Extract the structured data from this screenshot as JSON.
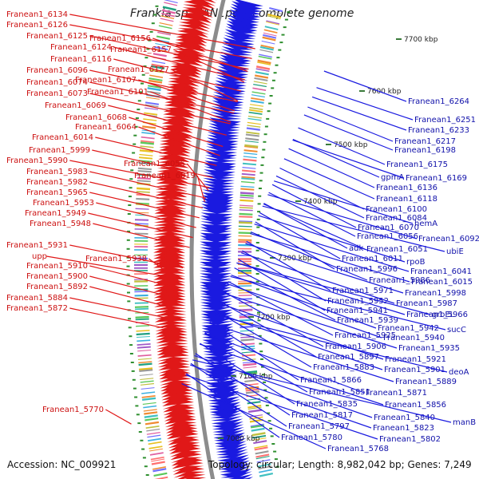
{
  "title": "Frankia sp. EAN1pec, complete genome",
  "accession": "Accession: NC_009921",
  "summary": "Topology: circular; Length: 8,982,042 bp; Genes: 7,249",
  "colors": {
    "forward": "#e01818",
    "reverse": "#1a1ae0",
    "backbone": "#8c8c8c",
    "tick": "#2f8f2f",
    "label_red": "#cc1111",
    "label_blue": "#1111aa"
  },
  "ticks": [
    {
      "label": "7000 kbp"
    },
    {
      "label": "7100 kbp"
    },
    {
      "label": "7200 kbp"
    },
    {
      "label": "7300 kbp"
    },
    {
      "label": "7400 kbp"
    },
    {
      "label": "7500 kbp"
    },
    {
      "label": "7600 kbp"
    },
    {
      "label": "7700 kbp"
    }
  ],
  "left_labels": [
    "Franean1_6134",
    "Franean1_6126",
    "Franean1_6125",
    "Franean1_6156",
    "Franean1_6124",
    "Franean1_6157",
    "Franean1_6116",
    "Franean1_6096",
    "Franean1_6127",
    "Franean1_6107",
    "Franean1_6074",
    "Franean1_6073",
    "Franean1_6101",
    "Franean1_6069",
    "Franean1_6068",
    "Franean1_6064",
    "Franean1_6014",
    "Franean1_5999",
    "Franean1_5990",
    "Franean1_6055",
    "Franean1_5983",
    "Franean1_6019",
    "Franean1_5982",
    "Franean1_5965",
    "Franean1_5953",
    "Franean1_5949",
    "Franean1_5948",
    "Franean1_5931",
    "upp",
    "Franean1_5938",
    "Franean1_5910",
    "Franean1_5900",
    "Franean1_5892",
    "Franean1_5884",
    "Franean1_5872",
    "Franean1_5770"
  ],
  "right_labels": [
    "Franean1_6264",
    "Franean1_6251",
    "Franean1_6233",
    "Franean1_6217",
    "Franean1_6198",
    "Franean1_6175",
    "gpmA",
    "Franean1_6169",
    "Franean1_6136",
    "Franean1_6118",
    "Franean1_6100",
    "Franean1_6084",
    "hemA",
    "Franean1_6070",
    "Franean1_6056",
    "Franean1_6092",
    "adk",
    "Franean1_6051",
    "ubiE",
    "Franean1_6011",
    "rpoB",
    "Franean1_6041",
    "Franean1_5996",
    "Franean1_5986",
    "Franean1_6015",
    "Franean1_5971",
    "Franean1_5998",
    "Franean1_5952",
    "Franean1_5987",
    "Franean1_5941",
    "Franean1_5966",
    "groEL",
    "Franean1_5939",
    "Franean1_5942",
    "sucC",
    "Franean1_5925",
    "Franean1_5940",
    "Franean1_5906",
    "Franean1_5935",
    "Franean1_5897",
    "Franean1_5921",
    "Franean1_5883",
    "Franean1_5901",
    "deoA",
    "Franean1_5866",
    "Franean1_5889",
    "Franean1_5851",
    "Franean1_5871",
    "Franean1_5835",
    "Franean1_5856",
    "Franean1_5817",
    "Franean1_5840",
    "manB",
    "Franean1_5797",
    "Franean1_5823",
    "Franean1_5780",
    "Franean1_5802",
    "Franean1_5768"
  ]
}
